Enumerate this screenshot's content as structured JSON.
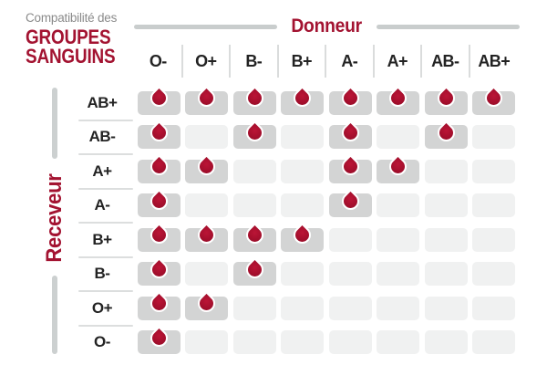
{
  "title": {
    "subtitle": "Compatibilité des",
    "line1": "GROUPES",
    "line2": "SANGUINS"
  },
  "axes": {
    "donor": "Donneur",
    "receiver": "Receveur"
  },
  "donors": [
    "O-",
    "O+",
    "B-",
    "B+",
    "A-",
    "A+",
    "AB-",
    "AB+"
  ],
  "receivers": [
    "AB+",
    "AB-",
    "A+",
    "A-",
    "B+",
    "B-",
    "O+",
    "O-"
  ],
  "matrix": [
    [
      1,
      1,
      1,
      1,
      1,
      1,
      1,
      1
    ],
    [
      1,
      0,
      1,
      0,
      1,
      0,
      1,
      0
    ],
    [
      1,
      1,
      0,
      0,
      1,
      1,
      0,
      0
    ],
    [
      1,
      0,
      0,
      0,
      1,
      0,
      0,
      0
    ],
    [
      1,
      1,
      1,
      1,
      0,
      0,
      0,
      0
    ],
    [
      1,
      0,
      1,
      0,
      0,
      0,
      0,
      0
    ],
    [
      1,
      1,
      0,
      0,
      0,
      0,
      0,
      0
    ],
    [
      1,
      0,
      0,
      0,
      0,
      0,
      0,
      0
    ]
  ],
  "chart_data": {
    "type": "heatmap",
    "title": "Compatibilité des GROUPES SANGUINS",
    "xlabel": "Donneur",
    "ylabel": "Receveur",
    "x_categories": [
      "O-",
      "O+",
      "B-",
      "B+",
      "A-",
      "A+",
      "AB-",
      "AB+"
    ],
    "y_categories": [
      "AB+",
      "AB-",
      "A+",
      "A-",
      "B+",
      "B-",
      "O+",
      "O-"
    ],
    "values": [
      [
        1,
        1,
        1,
        1,
        1,
        1,
        1,
        1
      ],
      [
        1,
        0,
        1,
        0,
        1,
        0,
        1,
        0
      ],
      [
        1,
        1,
        0,
        0,
        1,
        1,
        0,
        0
      ],
      [
        1,
        0,
        0,
        0,
        1,
        0,
        0,
        0
      ],
      [
        1,
        1,
        1,
        1,
        0,
        0,
        0,
        0
      ],
      [
        1,
        0,
        1,
        0,
        0,
        0,
        0,
        0
      ],
      [
        1,
        1,
        0,
        0,
        0,
        0,
        0,
        0
      ],
      [
        1,
        0,
        0,
        0,
        0,
        0,
        0,
        0
      ]
    ],
    "value_meaning": "1 = compatible (blood drop shown), 0 = incompatible (empty cell)"
  },
  "icons": {
    "compatible": "blood-drop-icon"
  },
  "colors": {
    "accent_red": "#a31331",
    "drop_red": "#a50f2d",
    "filled_cell_gray": "#d3d4d4",
    "empty_cell_gray": "#f0f1f1",
    "divider_gray": "#c9cdcd",
    "subtitle_gray": "#8a8a8a",
    "label_black": "#232323"
  }
}
